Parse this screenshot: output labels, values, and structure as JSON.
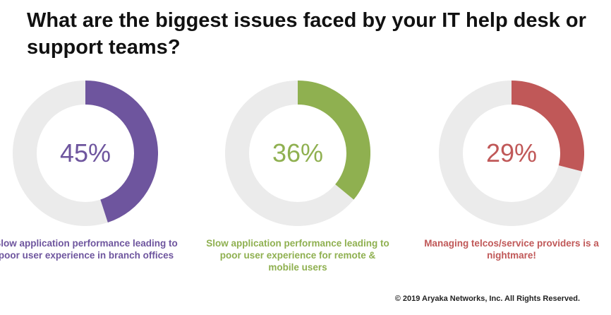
{
  "title": "What are the biggest issues faced by your IT help desk or support teams?",
  "footer": "© 2019 Aryaka Networks, Inc. All Rights Reserved.",
  "colors": {
    "track": "#ebebeb",
    "purple": "#6e559e",
    "green": "#8fb050",
    "red": "#c05858"
  },
  "chart_data": [
    {
      "type": "pie",
      "variant": "donut",
      "value": 45,
      "label": "45%",
      "caption": "Slow application performance leading to poor user experience in branch offices",
      "color": "#6e559e"
    },
    {
      "type": "pie",
      "variant": "donut",
      "value": 36,
      "label": "36%",
      "caption": "Slow application performance leading to poor user experience for remote & mobile users",
      "color": "#8fb050"
    },
    {
      "type": "pie",
      "variant": "donut",
      "value": 29,
      "label": "29%",
      "caption": "Managing telcos/service providers is a nightmare!",
      "color": "#c05858"
    }
  ]
}
